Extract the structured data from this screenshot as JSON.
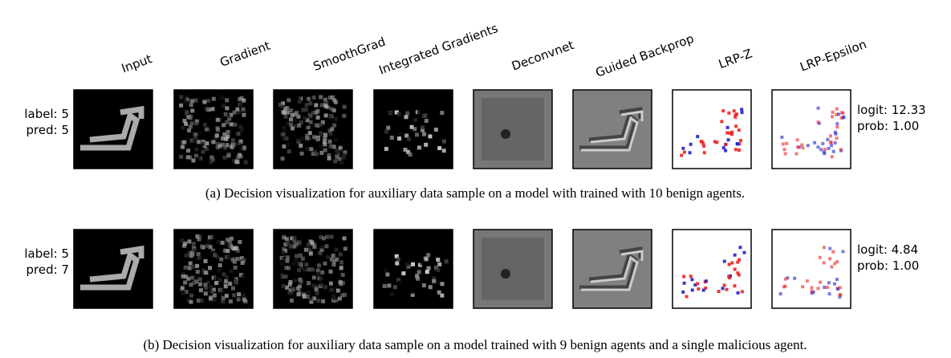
{
  "headers": [
    "Input",
    "Gradient",
    "SmoothGrad",
    "Integrated Gradients",
    "Deconvnet",
    "Guided Backprop",
    "LRP-Z",
    "LRP-Epsilon"
  ],
  "rows": [
    {
      "left": [
        "label: 5",
        "pred: 5"
      ],
      "right": [
        "logit: 12.33",
        "prob: 1.00"
      ],
      "caption": "(a) Decision visualization for auxiliary data sample on a model with trained with 10 benign agents."
    },
    {
      "left": [
        "label: 5",
        "pred: 7"
      ],
      "right": [
        "logit: 4.84",
        "prob: 1.00"
      ],
      "caption": "(b) Decision visualization for auxiliary data sample on a model trained with 9 benign agents and a single malicious agent."
    }
  ]
}
